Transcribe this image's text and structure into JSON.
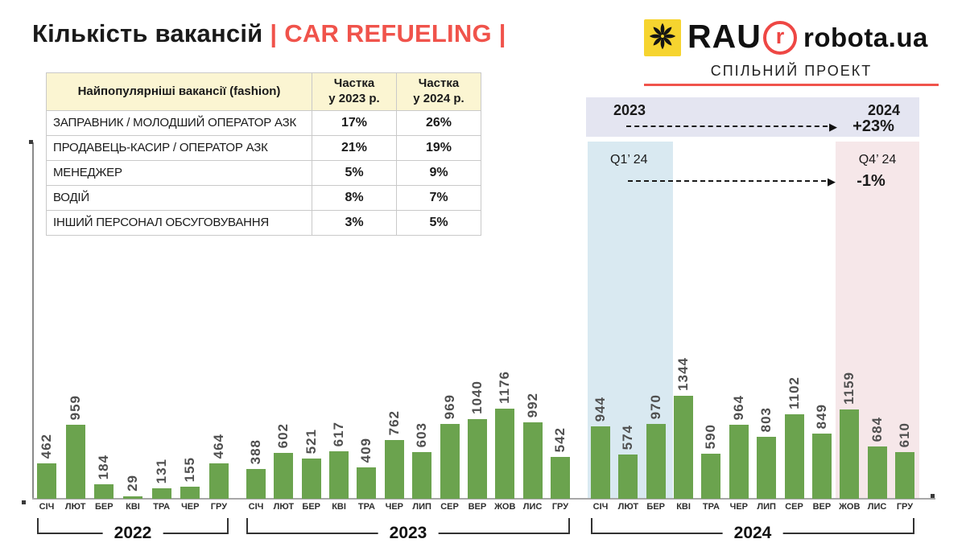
{
  "title": {
    "text_black": "Кількість вакансій",
    "separator": "|",
    "text_red": "CAR REFUELING"
  },
  "header": {
    "rau_logo_text": "RAU",
    "robota_logo_r": "r",
    "robota_logo_text": "robota.ua",
    "subtitle": "СПІЛЬНИЙ ПРОЕКТ"
  },
  "table": {
    "col_headers": [
      "Найпопулярніші вакансії (fashion)",
      "Частка\nу 2023 р.",
      "Частка\nу 2024 р."
    ],
    "rows": [
      {
        "name": "ЗАПРАВНИК / МОЛОДШИЙ ОПЕРАТОР АЗК",
        "share_2023": "17%",
        "share_2024": "26%"
      },
      {
        "name": "ПРОДАВЕЦЬ-КАСИР / ОПЕРАТОР АЗК",
        "share_2023": "21%",
        "share_2024": "19%"
      },
      {
        "name": "МЕНЕДЖЕР",
        "share_2023": "5%",
        "share_2024": "9%"
      },
      {
        "name": "ВОДІЙ",
        "share_2023": "8%",
        "share_2024": "7%"
      },
      {
        "name": "ІНШИЙ ПЕРСОНАЛ ОБСУГОВУВАННЯ",
        "share_2023": "3%",
        "share_2024": "5%"
      }
    ]
  },
  "annotations": {
    "yoy": {
      "from_label": "2023",
      "to_label": "2024",
      "change": "+23%",
      "arrow": "▶"
    },
    "qoq": {
      "from_label": "Q1’ 24",
      "to_label": "Q4’ 24",
      "change": "-1%",
      "arrow": "▶"
    }
  },
  "colors": {
    "accent_red": "#F0534B",
    "bar_green": "#6BA34E",
    "table_header_yellow": "#FBF5D2",
    "band_lavender": "#E4E5F1",
    "band_blue": "#D9E9F1",
    "band_pink": "#F6E7E9",
    "rau_yellow": "#F6D42F"
  },
  "chart_data": {
    "type": "bar",
    "title": "Кількість вакансій | CAR REFUELING |",
    "bar_color": "#6BA34E",
    "grid": false,
    "value_labels": "rotated-90-above-bars",
    "groups": [
      {
        "year": "2022",
        "categories": [
          "СІЧ",
          "ЛЮТ",
          "БЕР",
          "КВІ",
          "ТРА",
          "ЧЕР",
          "ГРУ"
        ],
        "values": [
          462,
          959,
          184,
          29,
          131,
          155,
          464
        ]
      },
      {
        "year": "2023",
        "categories": [
          "СІЧ",
          "ЛЮТ",
          "БЕР",
          "КВІ",
          "ТРА",
          "ЧЕР",
          "ЛИП",
          "СЕР",
          "ВЕР",
          "ЖОВ",
          "ЛИС",
          "ГРУ"
        ],
        "values": [
          388,
          602,
          521,
          617,
          409,
          762,
          603,
          969,
          1040,
          1176,
          992,
          542
        ]
      },
      {
        "year": "2024",
        "categories": [
          "СІЧ",
          "ЛЮТ",
          "БЕР",
          "КВІ",
          "ТРА",
          "ЧЕР",
          "ЛИП",
          "СЕР",
          "ВЕР",
          "ЖОВ",
          "ЛИС",
          "ГРУ"
        ],
        "values": [
          944,
          574,
          970,
          1344,
          590,
          964,
          803,
          1102,
          849,
          1159,
          684,
          610
        ]
      }
    ],
    "highlighted_ranges": [
      {
        "label": "Q1’ 24",
        "year": "2024",
        "months": [
          "СІЧ",
          "ЛЮТ",
          "БЕР"
        ],
        "color": "#D9E9F1"
      },
      {
        "label": "Q4’ 24",
        "year": "2024",
        "months": [
          "ЖОВ",
          "ЛИС",
          "ГРУ"
        ],
        "color": "#F6E7E9"
      }
    ],
    "trend_annotations": [
      {
        "from": "2023",
        "to": "2024",
        "change": "+23%"
      },
      {
        "from": "Q1’ 24",
        "to": "Q4’ 24",
        "change": "-1%"
      }
    ]
  }
}
